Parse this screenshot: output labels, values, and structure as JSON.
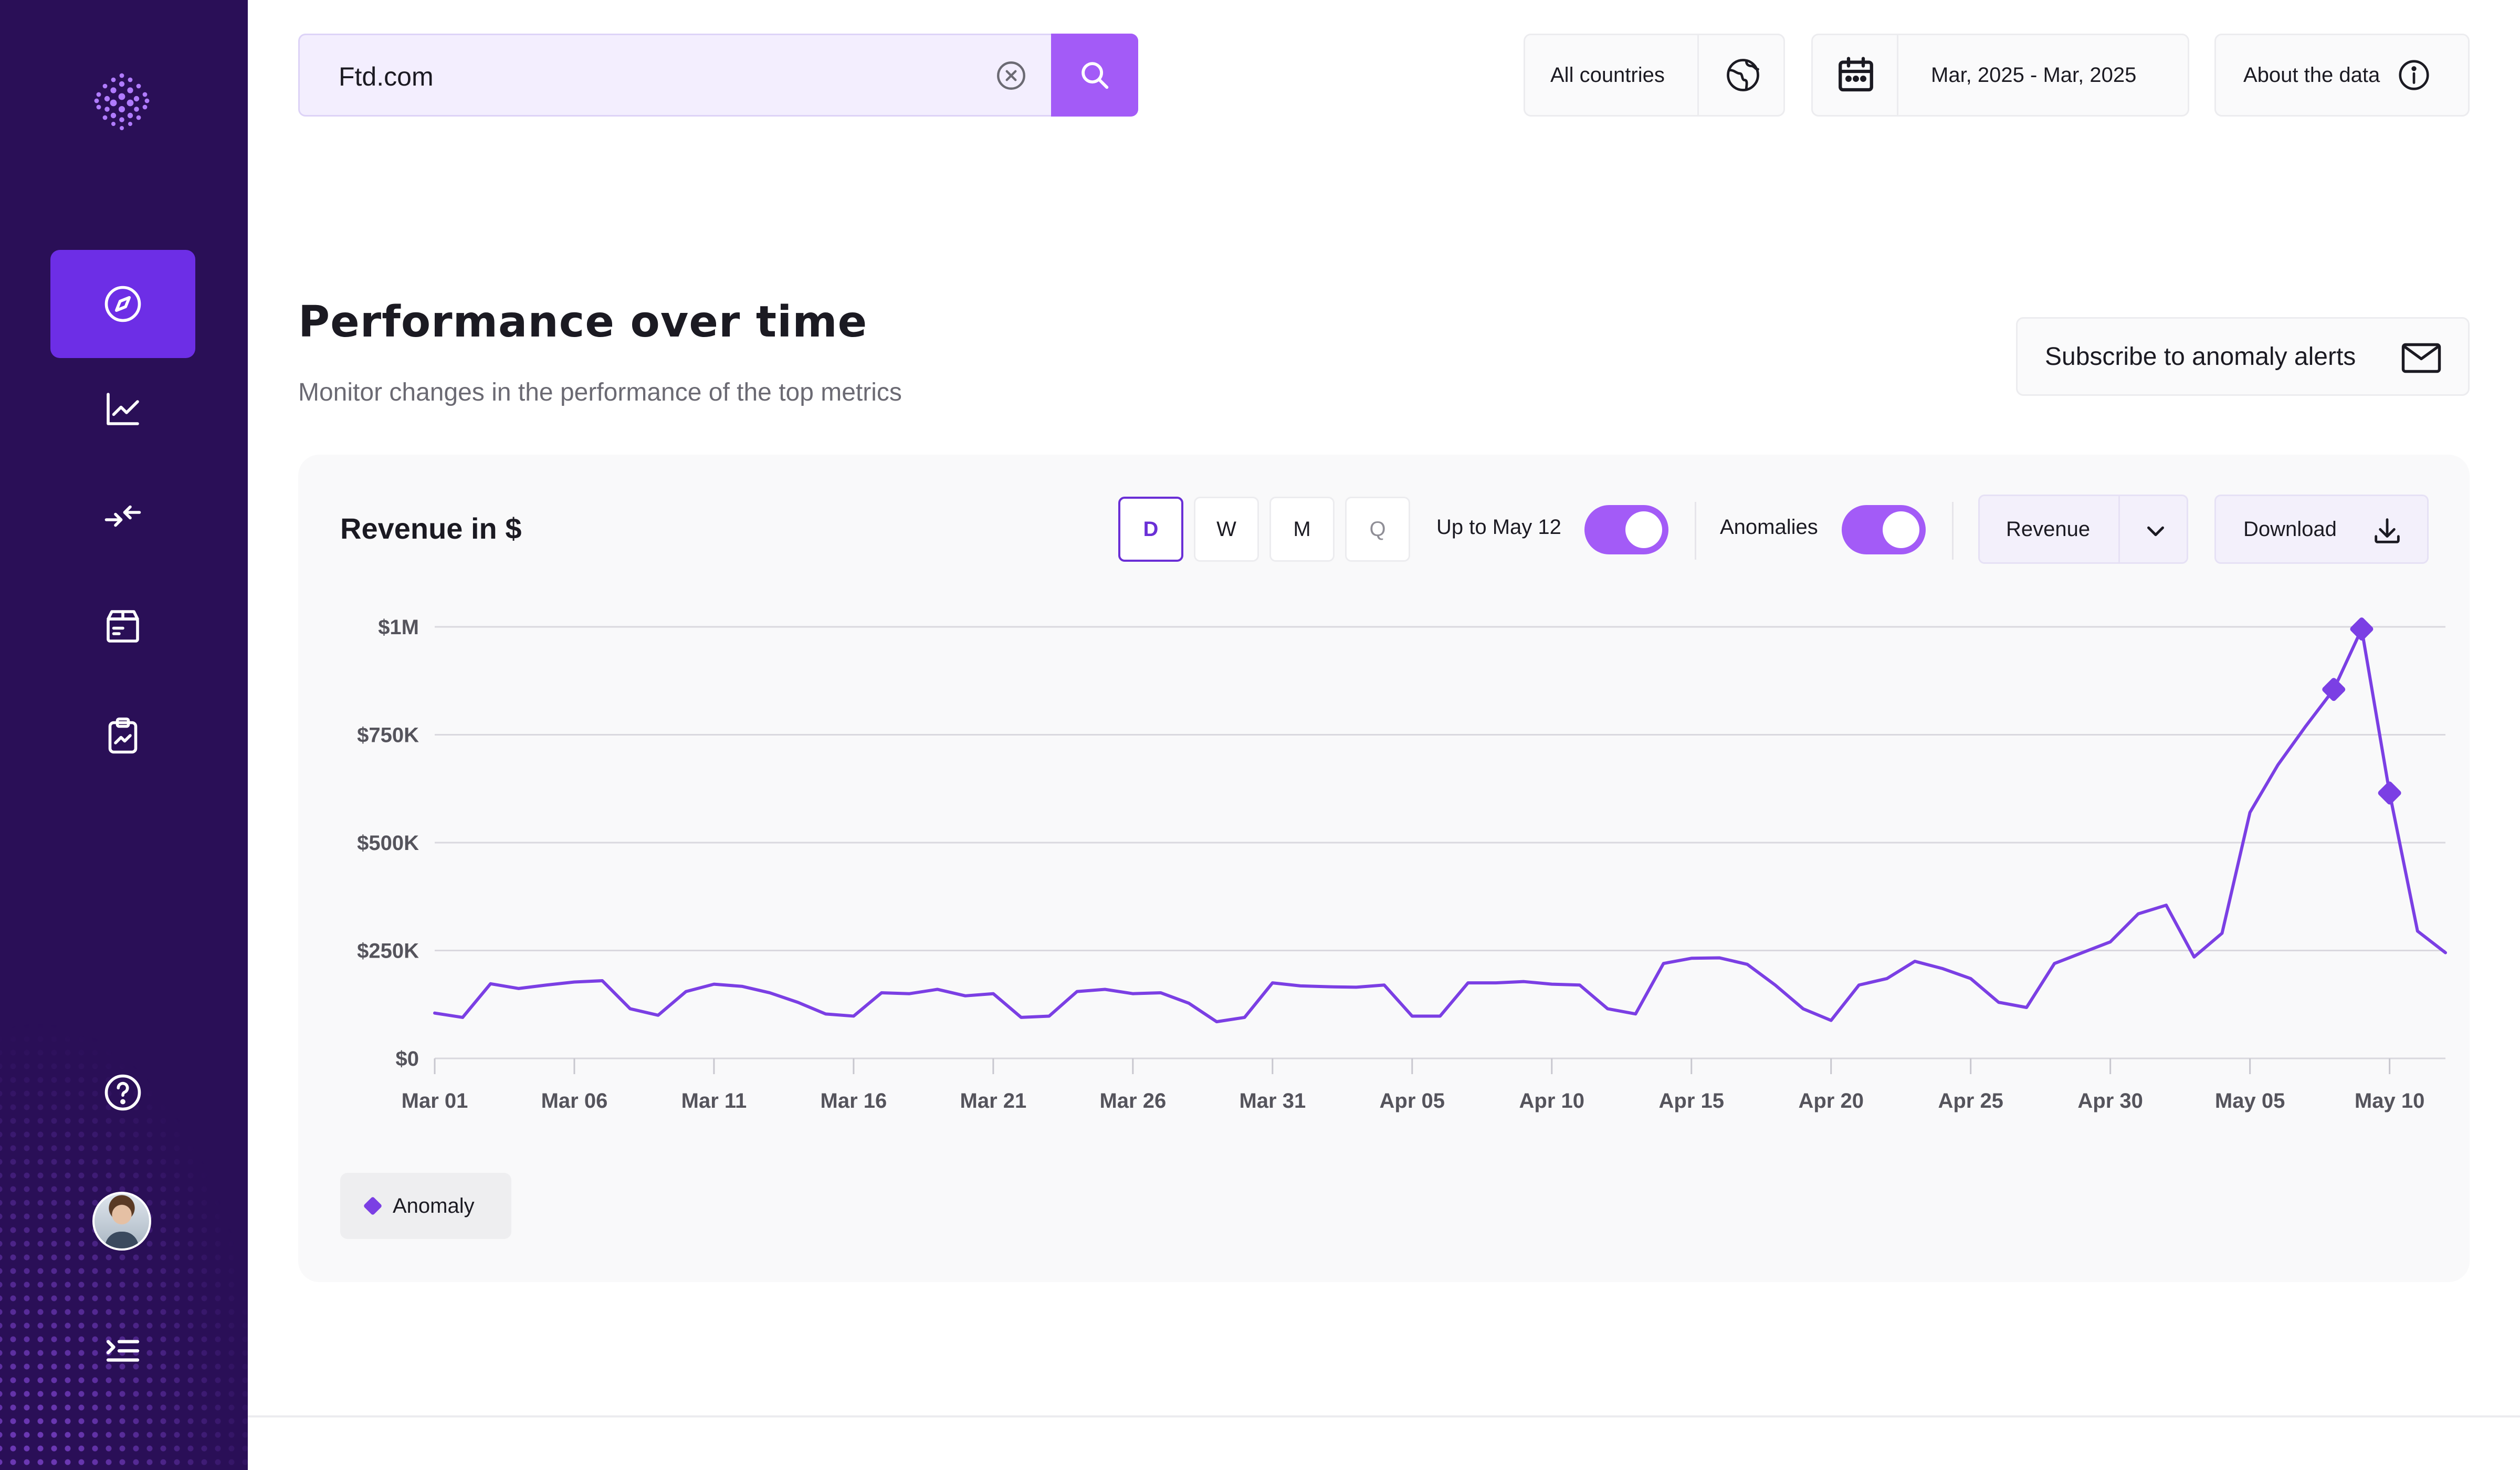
{
  "search": {
    "value": "Ftd.com"
  },
  "filters": {
    "countries_label": "All countries",
    "date_range_label": "Mar, 2025 - Mar, 2025",
    "about_label": "About the data"
  },
  "header": {
    "title": "Performance over time",
    "subtitle": "Monitor changes in the performance of the top metrics",
    "subscribe_label": "Subscribe to anomaly alerts"
  },
  "chart_card": {
    "title": "Revenue in $",
    "granularity": [
      "D",
      "W",
      "M",
      "Q"
    ],
    "active_granularity": "D",
    "up_to_label": "Up to May 12",
    "up_to_enabled": true,
    "anomalies_label": "Anomalies",
    "anomalies_enabled": true,
    "metric_select": "Revenue",
    "download_label": "Download",
    "legend_anomaly": "Anomaly"
  },
  "colors": {
    "sidebar": "#2a0f57",
    "accent": "#6d2ee6",
    "line": "#7b3fe4",
    "anomaly": "#7b3fe4",
    "toggle": "#a35bf7"
  },
  "sidebar": {
    "items": [
      {
        "icon": "compass-icon",
        "active": true
      },
      {
        "icon": "trend-chart-icon",
        "active": false
      },
      {
        "icon": "compare-arrows-icon",
        "active": false
      },
      {
        "icon": "box-icon",
        "active": false
      },
      {
        "icon": "clipboard-chart-icon",
        "active": false
      }
    ],
    "bottom_icons": [
      "help-icon",
      "avatar",
      "expand-menu-icon"
    ]
  },
  "chart_data": {
    "type": "line",
    "title": "Revenue in $",
    "ylim": [
      0,
      1000000
    ],
    "yticks": [
      {
        "value": 0,
        "label": "$0"
      },
      {
        "value": 250000,
        "label": "$250K"
      },
      {
        "value": 500000,
        "label": "$500K"
      },
      {
        "value": 750000,
        "label": "$750K"
      },
      {
        "value": 1000000,
        "label": "$1M"
      }
    ],
    "xticks": [
      {
        "day": 0,
        "label": "Mar 01"
      },
      {
        "day": 5,
        "label": "Mar 06"
      },
      {
        "day": 10,
        "label": "Mar 11"
      },
      {
        "day": 15,
        "label": "Mar 16"
      },
      {
        "day": 20,
        "label": "Mar 21"
      },
      {
        "day": 25,
        "label": "Mar 26"
      },
      {
        "day": 30,
        "label": "Mar 31"
      },
      {
        "day": 35,
        "label": "Apr 05"
      },
      {
        "day": 40,
        "label": "Apr 10"
      },
      {
        "day": 45,
        "label": "Apr 15"
      },
      {
        "day": 50,
        "label": "Apr 20"
      },
      {
        "day": 55,
        "label": "Apr 25"
      },
      {
        "day": 60,
        "label": "Apr 30"
      },
      {
        "day": 65,
        "label": "May 05"
      },
      {
        "day": 70,
        "label": "May 10"
      }
    ],
    "grid": true,
    "series": [
      {
        "values": [
          105000,
          95000,
          173000,
          162000,
          170000,
          177000,
          180000,
          115000,
          100000,
          155000,
          172000,
          167000,
          152000,
          130000,
          103000,
          98000,
          152000,
          150000,
          160000,
          145000,
          150000,
          95000,
          98000,
          155000,
          160000,
          150000,
          152000,
          128000,
          85000,
          95000,
          175000,
          168000,
          166000,
          165000,
          170000,
          98000,
          98000,
          175000,
          175000,
          178000,
          172000,
          170000,
          115000,
          103000,
          220000,
          232000,
          233000,
          218000,
          170000,
          115000,
          88000,
          170000,
          185000,
          225000,
          208000,
          185000,
          130000,
          118000,
          220000,
          245000,
          270000,
          335000,
          355000,
          235000,
          290000,
          570000,
          680000,
          770000,
          855000,
          995000,
          615000,
          295000,
          245000
        ]
      }
    ],
    "anomalies": [
      {
        "day": 68,
        "value": 855000
      },
      {
        "day": 69,
        "value": 995000
      },
      {
        "day": 70,
        "value": 615000
      }
    ],
    "legend": [
      "Anomaly"
    ]
  }
}
